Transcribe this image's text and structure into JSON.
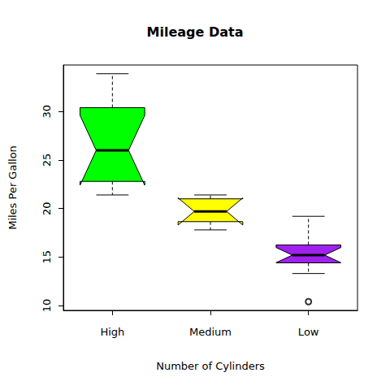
{
  "chart_data": {
    "type": "boxplot",
    "title": "Mileage Data",
    "x_label": "Number of Cylinders",
    "y_label": "Miles Per Gallon",
    "categories": [
      "High",
      "Medium",
      "Low"
    ],
    "stats": [
      {
        "min": 21.4,
        "q1": 22.8,
        "median": 26.0,
        "q3": 30.4,
        "max": 33.9,
        "notch": [
          22.4,
          29.6
        ]
      },
      {
        "min": 17.8,
        "q1": 18.65,
        "median": 19.7,
        "q3": 21.0,
        "max": 21.4,
        "notch": [
          18.3,
          21.1
        ]
      },
      {
        "min": 13.3,
        "q1": 14.4,
        "median": 15.2,
        "q3": 16.25,
        "max": 19.2,
        "notch": [
          14.42,
          15.98
        ]
      }
    ],
    "outliers": [
      [],
      [],
      [
        10.4
      ]
    ],
    "colors": [
      "#00ff00",
      "#ffff00",
      "#a020f0"
    ],
    "ylim": [
      9.5,
      34.8
    ],
    "yticks": [
      10,
      15,
      20,
      25,
      30
    ],
    "grid": false
  }
}
